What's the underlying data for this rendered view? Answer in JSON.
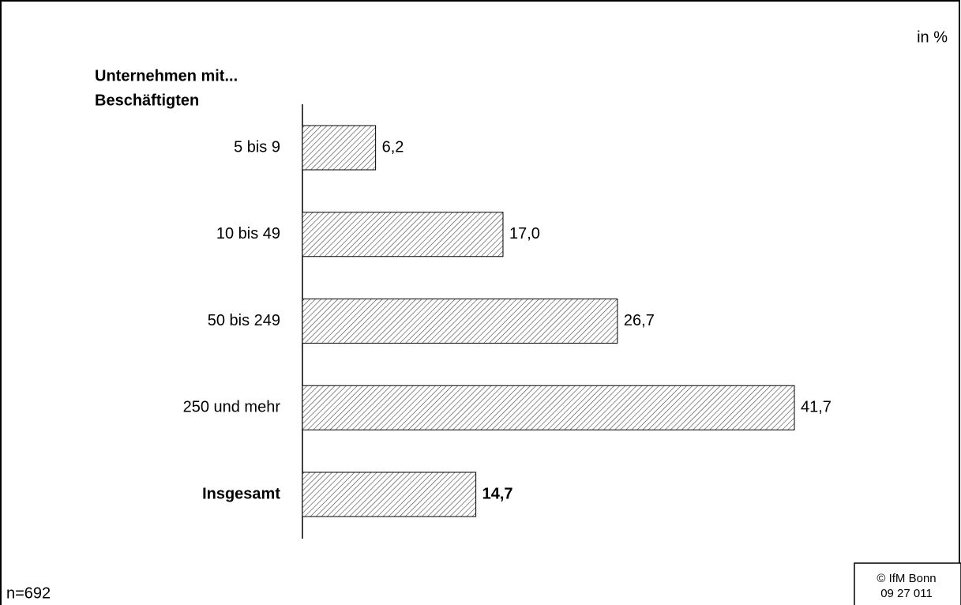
{
  "chart_data": {
    "type": "bar",
    "orientation": "horizontal",
    "unit_label": "in %",
    "category_label": [
      "Unternehmen mit...",
      "Beschäftigten"
    ],
    "categories": [
      "5 bis 9",
      "10 bis 49",
      "50 bis 249",
      "250 und mehr",
      "Insgesamt"
    ],
    "values": [
      6.2,
      17.0,
      26.7,
      41.7,
      14.7
    ],
    "value_labels": [
      "6,2",
      "17,0",
      "26,7",
      "41,7",
      "14,7"
    ],
    "bold": [
      false,
      false,
      false,
      false,
      true
    ],
    "color": "#ffffff",
    "hatch_color": "#444444",
    "note": "n=692",
    "source": [
      "© IfM Bonn",
      "09 27 011"
    ]
  }
}
